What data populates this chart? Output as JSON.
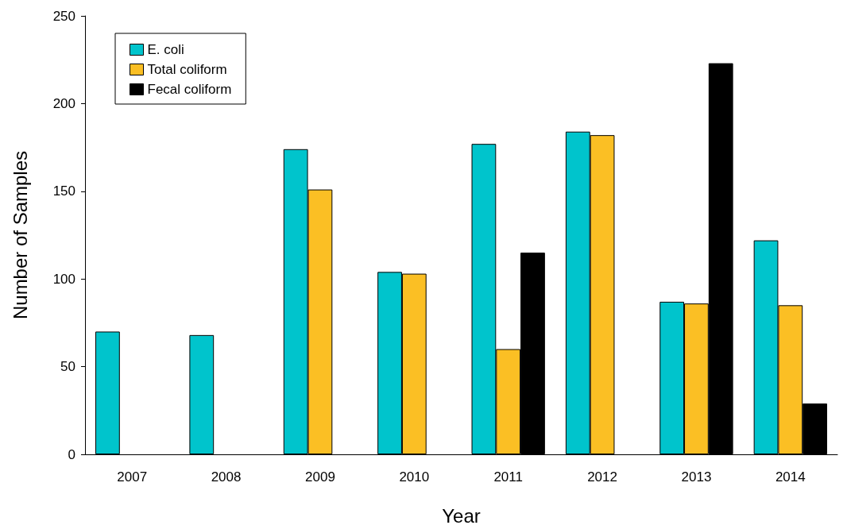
{
  "chart_data": {
    "type": "bar",
    "xlabel": "Year",
    "ylabel": "Number of Samples",
    "categories": [
      "2007",
      "2008",
      "2009",
      "2010",
      "2011",
      "2012",
      "2013",
      "2014"
    ],
    "series": [
      {
        "name": "E. coli",
        "color": "#00c4cc",
        "values": [
          70,
          68,
          174,
          104,
          177,
          184,
          87,
          122
        ]
      },
      {
        "name": "Total coliform",
        "color": "#fbbf24",
        "values": [
          null,
          null,
          151,
          103,
          60,
          182,
          86,
          85
        ]
      },
      {
        "name": "Fecal coliform",
        "color": "#000000",
        "values": [
          null,
          null,
          null,
          null,
          115,
          null,
          223,
          29
        ]
      }
    ],
    "ylim": [
      0,
      250
    ],
    "yticks": [
      0,
      50,
      100,
      150,
      200,
      250
    ],
    "grid": false,
    "legend": "top left"
  }
}
